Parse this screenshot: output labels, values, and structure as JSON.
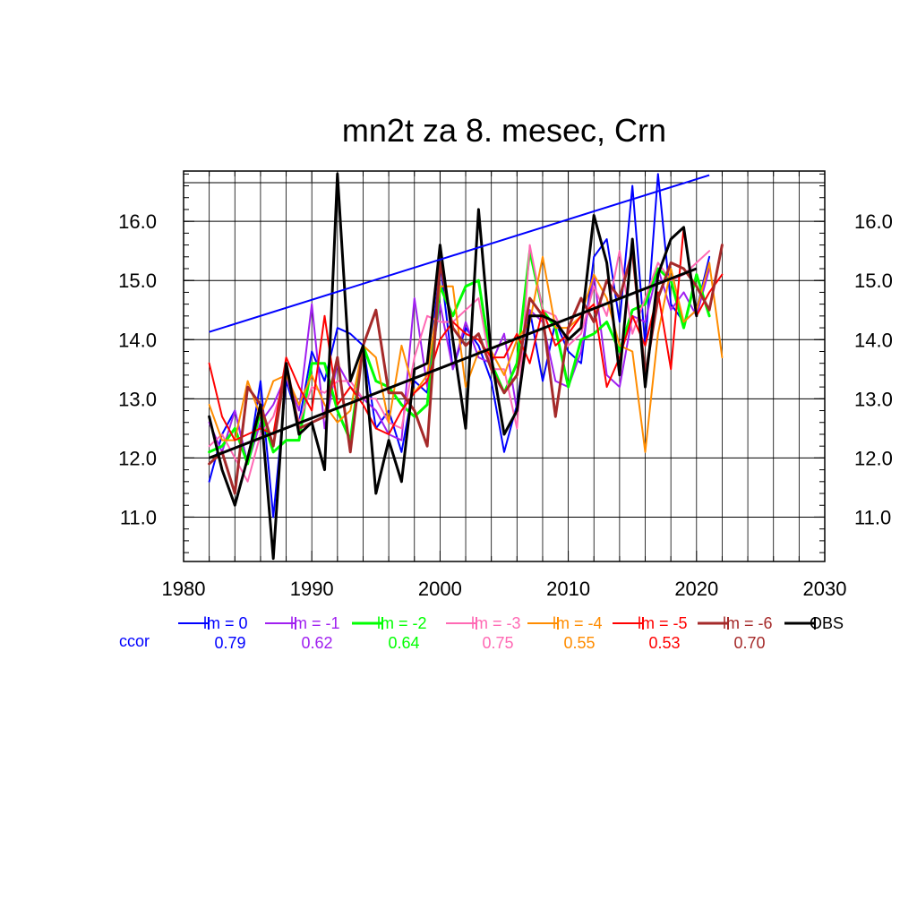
{
  "chart_data": {
    "type": "line",
    "title": "mn2t za 8. mesec, Crn",
    "xlabel": "",
    "ylabel": "",
    "xlim": [
      1980,
      2030
    ],
    "ylim": [
      10.25,
      16.85
    ],
    "x_ticks": [
      1980,
      1990,
      2000,
      2010,
      2020,
      2030
    ],
    "x_tick_labels": [
      "1980",
      "1990",
      "2000",
      "2010",
      "2020",
      "2030"
    ],
    "y_ticks": [
      11.0,
      12.0,
      13.0,
      14.0,
      15.0,
      16.0
    ],
    "y_tick_labels": [
      "11.0",
      "12.0",
      "13.0",
      "14.0",
      "15.0",
      "16.0"
    ],
    "grid": true,
    "legend_position": "bottom",
    "ccor_label": "ccor",
    "ccor_color": "#0000ff",
    "series": [
      {
        "name": "lm = 0",
        "color": "#0000ff",
        "width": 2,
        "ccor": "0.79",
        "x": [
          1982,
          1983,
          1984,
          1985,
          1986,
          1987,
          1988,
          1989,
          1990,
          1991,
          1992,
          1993,
          1994,
          1995,
          1996,
          1997,
          1998,
          1999,
          2000,
          2001,
          2002,
          2003,
          2004,
          2005,
          2006,
          2007,
          2008,
          2009,
          2010,
          2011,
          2012,
          2013,
          2014,
          2015,
          2016,
          2017,
          2018,
          2019,
          2020,
          2021
        ],
        "values": [
          11.6,
          12.4,
          12.8,
          11.9,
          13.3,
          11.0,
          13.3,
          12.6,
          13.8,
          13.3,
          14.2,
          14.1,
          13.9,
          12.5,
          12.8,
          12.1,
          13.3,
          13.1,
          15.3,
          13.5,
          14.2,
          13.9,
          13.3,
          12.1,
          12.9,
          14.5,
          13.3,
          14.3,
          13.8,
          13.6,
          15.4,
          15.7,
          14.3,
          16.6,
          13.9,
          16.8,
          14.6,
          14.3,
          14.5,
          15.4
        ]
      },
      {
        "name": "lm = -1",
        "color": "#a020f0",
        "width": 2,
        "ccor": "0.62",
        "x": [
          1982,
          1983,
          1984,
          1985,
          1986,
          1987,
          1988,
          1989,
          1990,
          1991,
          1992,
          1993,
          1994,
          1995,
          1996,
          1997,
          1998,
          1999,
          2000,
          2001,
          2002,
          2003,
          2004,
          2005,
          2006,
          2007,
          2008,
          2009,
          2010,
          2011,
          2012,
          2013,
          2014,
          2015,
          2016,
          2017,
          2018,
          2019,
          2020,
          2021
        ],
        "values": [
          12.6,
          12.1,
          12.8,
          11.9,
          12.6,
          12.9,
          13.4,
          12.8,
          14.6,
          12.5,
          13.6,
          13.2,
          13.0,
          12.8,
          12.4,
          12.3,
          14.7,
          13.2,
          14.6,
          13.5,
          14.3,
          13.7,
          13.6,
          14.1,
          12.8,
          14.5,
          14.3,
          13.3,
          13.2,
          13.8,
          15.1,
          13.4,
          13.2,
          14.4,
          14.3,
          15.2,
          14.5,
          14.8,
          14.4,
          15.2
        ]
      },
      {
        "name": "lm = -2",
        "color": "#00ff00",
        "width": 3,
        "ccor": "0.64",
        "x": [
          1982,
          1983,
          1984,
          1985,
          1986,
          1987,
          1988,
          1989,
          1990,
          1991,
          1992,
          1993,
          1994,
          1995,
          1996,
          1997,
          1998,
          1999,
          2000,
          2001,
          2002,
          2003,
          2004,
          2005,
          2006,
          2007,
          2008,
          2009,
          2010,
          2011,
          2012,
          2013,
          2014,
          2015,
          2016,
          2017,
          2018,
          2019,
          2020,
          2021
        ],
        "values": [
          12.1,
          12.2,
          12.5,
          11.9,
          12.8,
          12.1,
          12.3,
          12.3,
          13.6,
          13.6,
          12.8,
          12.3,
          13.9,
          13.3,
          13.2,
          12.9,
          12.7,
          12.9,
          14.9,
          14.4,
          14.9,
          15.0,
          13.6,
          13.1,
          13.6,
          15.5,
          14.5,
          14.2,
          13.2,
          14.0,
          14.1,
          14.3,
          13.8,
          14.5,
          14.6,
          15.2,
          15.0,
          14.2,
          15.1,
          14.4
        ]
      },
      {
        "name": "lm = -3",
        "color": "#ff69b4",
        "width": 2,
        "ccor": "0.75",
        "x": [
          1982,
          1983,
          1984,
          1985,
          1986,
          1987,
          1988,
          1989,
          1990,
          1991,
          1992,
          1993,
          1994,
          1995,
          1996,
          1997,
          1998,
          1999,
          2000,
          2001,
          2002,
          2003,
          2004,
          2005,
          2006,
          2007,
          2008,
          2009,
          2010,
          2011,
          2012,
          2013,
          2014,
          2015,
          2016,
          2017,
          2018,
          2019,
          2020,
          2021,
          2022
        ],
        "values": [
          12.2,
          12.4,
          12.0,
          11.6,
          12.4,
          12.7,
          13.4,
          12.6,
          13.2,
          13.1,
          13.3,
          13.3,
          13.0,
          13.0,
          12.6,
          12.5,
          13.7,
          14.4,
          14.3,
          14.3,
          14.5,
          14.7,
          13.5,
          13.5,
          12.5,
          15.6,
          14.5,
          14.4,
          13.9,
          14.1,
          14.9,
          14.4,
          15.5,
          14.1,
          14.7,
          15.3,
          15.0,
          15.1,
          15.3,
          15.5,
          null
        ]
      },
      {
        "name": "lm = -4",
        "color": "#ff8c00",
        "width": 2,
        "ccor": "0.55",
        "x": [
          1982,
          1983,
          1984,
          1985,
          1986,
          1987,
          1988,
          1989,
          1990,
          1991,
          1992,
          1993,
          1994,
          1995,
          1996,
          1997,
          1998,
          1999,
          2000,
          2001,
          2002,
          2003,
          2004,
          2005,
          2006,
          2007,
          2008,
          2009,
          2010,
          2011,
          2012,
          2013,
          2014,
          2015,
          2016,
          2017,
          2018,
          2019,
          2020,
          2021,
          2022
        ],
        "values": [
          12.9,
          12.3,
          12.3,
          13.3,
          12.7,
          13.3,
          13.4,
          12.9,
          13.4,
          12.9,
          12.6,
          12.8,
          13.9,
          13.7,
          12.6,
          13.9,
          13.1,
          13.4,
          14.9,
          14.9,
          13.2,
          13.8,
          13.8,
          13.4,
          14.0,
          14.3,
          15.4,
          14.2,
          14.2,
          14.4,
          15.1,
          14.7,
          13.9,
          13.8,
          12.1,
          14.1,
          15.2,
          14.3,
          14.5,
          15.3,
          13.7
        ]
      },
      {
        "name": "lm = -5",
        "color": "#ff0000",
        "width": 2,
        "ccor": "0.53",
        "x": [
          1982,
          1983,
          1984,
          1985,
          1986,
          1987,
          1988,
          1989,
          1990,
          1991,
          1992,
          1993,
          1994,
          1995,
          1996,
          1997,
          1998,
          1999,
          2000,
          2001,
          2002,
          2003,
          2004,
          2005,
          2006,
          2007,
          2008,
          2009,
          2010,
          2011,
          2012,
          2013,
          2014,
          2015,
          2016,
          2017,
          2018,
          2019,
          2020,
          2021,
          2022
        ],
        "values": [
          13.6,
          12.7,
          12.3,
          12.4,
          12.5,
          12.4,
          13.7,
          13.2,
          12.8,
          14.4,
          12.9,
          13.2,
          12.9,
          12.5,
          12.4,
          12.8,
          13.1,
          13.3,
          14.0,
          14.3,
          14.1,
          14.0,
          13.7,
          13.7,
          14.1,
          13.6,
          14.5,
          13.9,
          14.1,
          14.4,
          14.6,
          13.2,
          13.7,
          14.4,
          13.9,
          14.8,
          13.5,
          15.9,
          14.4,
          14.8,
          15.1
        ]
      },
      {
        "name": "lm = -6",
        "color": "#a52a2a",
        "width": 3,
        "ccor": "0.70",
        "x": [
          1982,
          1983,
          1984,
          1985,
          1986,
          1987,
          1988,
          1989,
          1990,
          1991,
          1992,
          1993,
          1994,
          1995,
          1996,
          1997,
          1998,
          1999,
          2000,
          2001,
          2002,
          2003,
          2004,
          2005,
          2006,
          2007,
          2008,
          2009,
          2010,
          2011,
          2012,
          2013,
          2014,
          2015,
          2016,
          2017,
          2018,
          2019,
          2020,
          2021,
          2022
        ],
        "values": [
          11.9,
          12.1,
          11.4,
          13.2,
          12.9,
          12.2,
          13.6,
          12.5,
          12.6,
          12.7,
          13.7,
          12.1,
          13.9,
          14.5,
          13.1,
          13.1,
          12.8,
          12.2,
          15.3,
          14.2,
          13.9,
          14.1,
          13.5,
          13.1,
          13.4,
          14.7,
          14.4,
          12.7,
          14.2,
          14.7,
          14.3,
          15.0,
          14.7,
          15.5,
          13.4,
          14.7,
          15.3,
          15.2,
          14.9,
          14.5,
          15.6
        ]
      },
      {
        "name": "OBS",
        "color": "#000000",
        "width": 3,
        "ccor": "",
        "x": [
          1982,
          1983,
          1984,
          1985,
          1986,
          1987,
          1988,
          1989,
          1990,
          1991,
          1992,
          1993,
          1994,
          1995,
          1996,
          1997,
          1998,
          1999,
          2000,
          2001,
          2002,
          2003,
          2004,
          2005,
          2006,
          2007,
          2008,
          2009,
          2010,
          2011,
          2012,
          2013,
          2014,
          2015,
          2016,
          2017,
          2018,
          2019,
          2020
        ],
        "values": [
          12.7,
          11.8,
          11.2,
          12.0,
          12.9,
          10.3,
          13.6,
          12.4,
          12.6,
          11.8,
          16.8,
          13.3,
          13.9,
          11.4,
          12.3,
          11.6,
          13.5,
          13.6,
          15.6,
          14.0,
          12.5,
          16.2,
          13.7,
          12.4,
          12.8,
          14.4,
          14.4,
          14.3,
          14.0,
          14.2,
          16.1,
          15.3,
          13.4,
          15.7,
          13.2,
          15.1,
          15.7,
          15.9,
          14.4
        ]
      }
    ],
    "trend_lines": [
      {
        "name": "lm = 0 trend",
        "color": "#0000ff",
        "width": 2,
        "x": [
          1982,
          2021
        ],
        "values": [
          14.13,
          16.78
        ]
      },
      {
        "name": "OBS trend",
        "color": "#000000",
        "width": 3,
        "x": [
          1982,
          2020
        ],
        "values": [
          12.0,
          15.2
        ]
      }
    ]
  }
}
